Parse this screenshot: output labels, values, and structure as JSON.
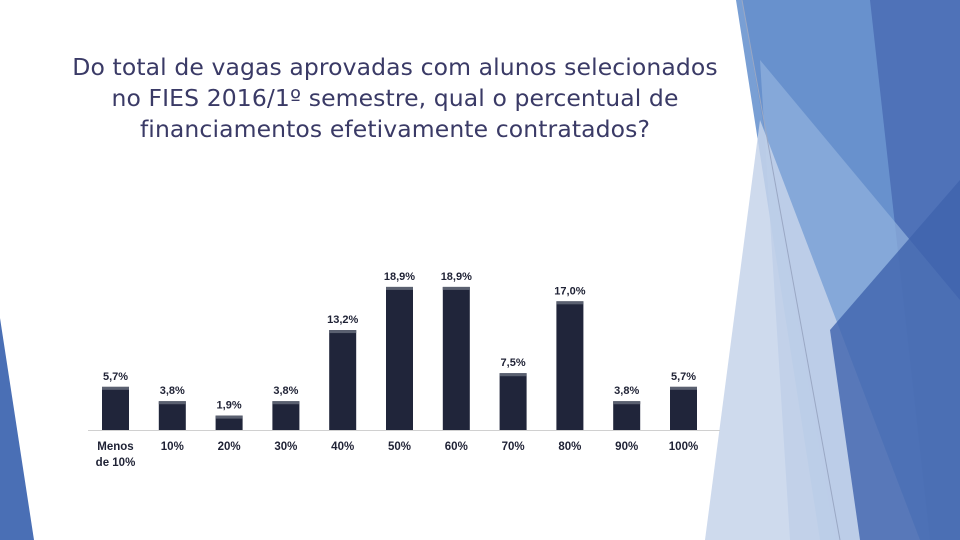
{
  "slide": {
    "title_lines": [
      "Do total de vagas aprovadas com alunos selecionados",
      "no FIES 2016/1º semestre, qual o percentual de",
      "financiamentos efetivamente contratados?"
    ]
  },
  "colors": {
    "bar": "#20253a",
    "bar_highlight": "#5a6070",
    "text": "#1f2235",
    "title": "#3a3a66",
    "deco_blue": "#4a6fb5",
    "deco_light": "#8fb0dc"
  },
  "chart_data": {
    "type": "bar",
    "categories": [
      [
        "Menos",
        "de 10%"
      ],
      [
        "10%"
      ],
      [
        "20%"
      ],
      [
        "30%"
      ],
      [
        "40%"
      ],
      [
        "50%"
      ],
      [
        "60%"
      ],
      [
        "70%"
      ],
      [
        "80%"
      ],
      [
        "90%"
      ],
      [
        "100%"
      ]
    ],
    "values": [
      5.7,
      3.8,
      1.9,
      3.8,
      13.2,
      18.9,
      18.9,
      7.5,
      17.0,
      3.8,
      5.7
    ],
    "data_labels": [
      "5,7%",
      "3,8%",
      "1,9%",
      "3,8%",
      "13,2%",
      "18,9%",
      "18,9%",
      "7,5%",
      "17,0%",
      "3,8%",
      "5,7%"
    ],
    "title": "",
    "xlabel": "",
    "ylabel": "",
    "ylim": [
      0,
      20
    ],
    "grid": false,
    "legend": "none"
  }
}
